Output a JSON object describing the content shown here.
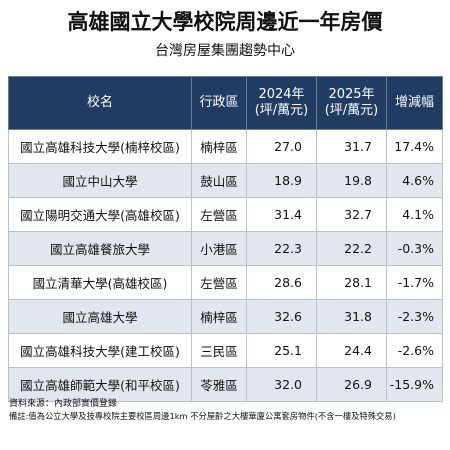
{
  "header": {
    "title": "高雄國立大學校院周邊近一年房價",
    "subtitle": "台灣房屋集團趨勢中心"
  },
  "table": {
    "columns": [
      [
        "校名"
      ],
      [
        "行政區"
      ],
      [
        "2024年",
        "(坪/萬元)"
      ],
      [
        "2025年",
        "(坪/萬元)"
      ],
      [
        "增減幅"
      ]
    ],
    "rows": [
      [
        "國立高雄科技大學(楠梓校區)",
        "楠梓區",
        "27.0",
        "31.7",
        "17.4%"
      ],
      [
        "國立中山大學",
        "鼓山區",
        "18.9",
        "19.8",
        "4.6%"
      ],
      [
        "國立陽明交通大學(高雄校區)",
        "左營區",
        "31.4",
        "32.7",
        "4.1%"
      ],
      [
        "國立高雄餐旅大學",
        "小港區",
        "22.3",
        "22.2",
        "-0.3%"
      ],
      [
        "國立清華大學(高雄校區)",
        "左營區",
        "28.6",
        "28.1",
        "-1.7%"
      ],
      [
        "國立高雄大學",
        "楠梓區",
        "32.6",
        "31.8",
        "-2.3%"
      ],
      [
        "國立高雄科技大學(建工校區)",
        "三民區",
        "25.1",
        "24.4",
        "-2.6%"
      ],
      [
        "國立高雄師範大學(和平校區)",
        "苓雅區",
        "32.0",
        "26.9",
        "-15.9%"
      ]
    ]
  },
  "footer": {
    "source": "資料來源：內政部實價登錄",
    "note": "備註:值為公立大學及技專校院主要校區周邊1km 不分屋齡之大樓華廈公寓套房物件(不含一樓及特殊交易)"
  }
}
